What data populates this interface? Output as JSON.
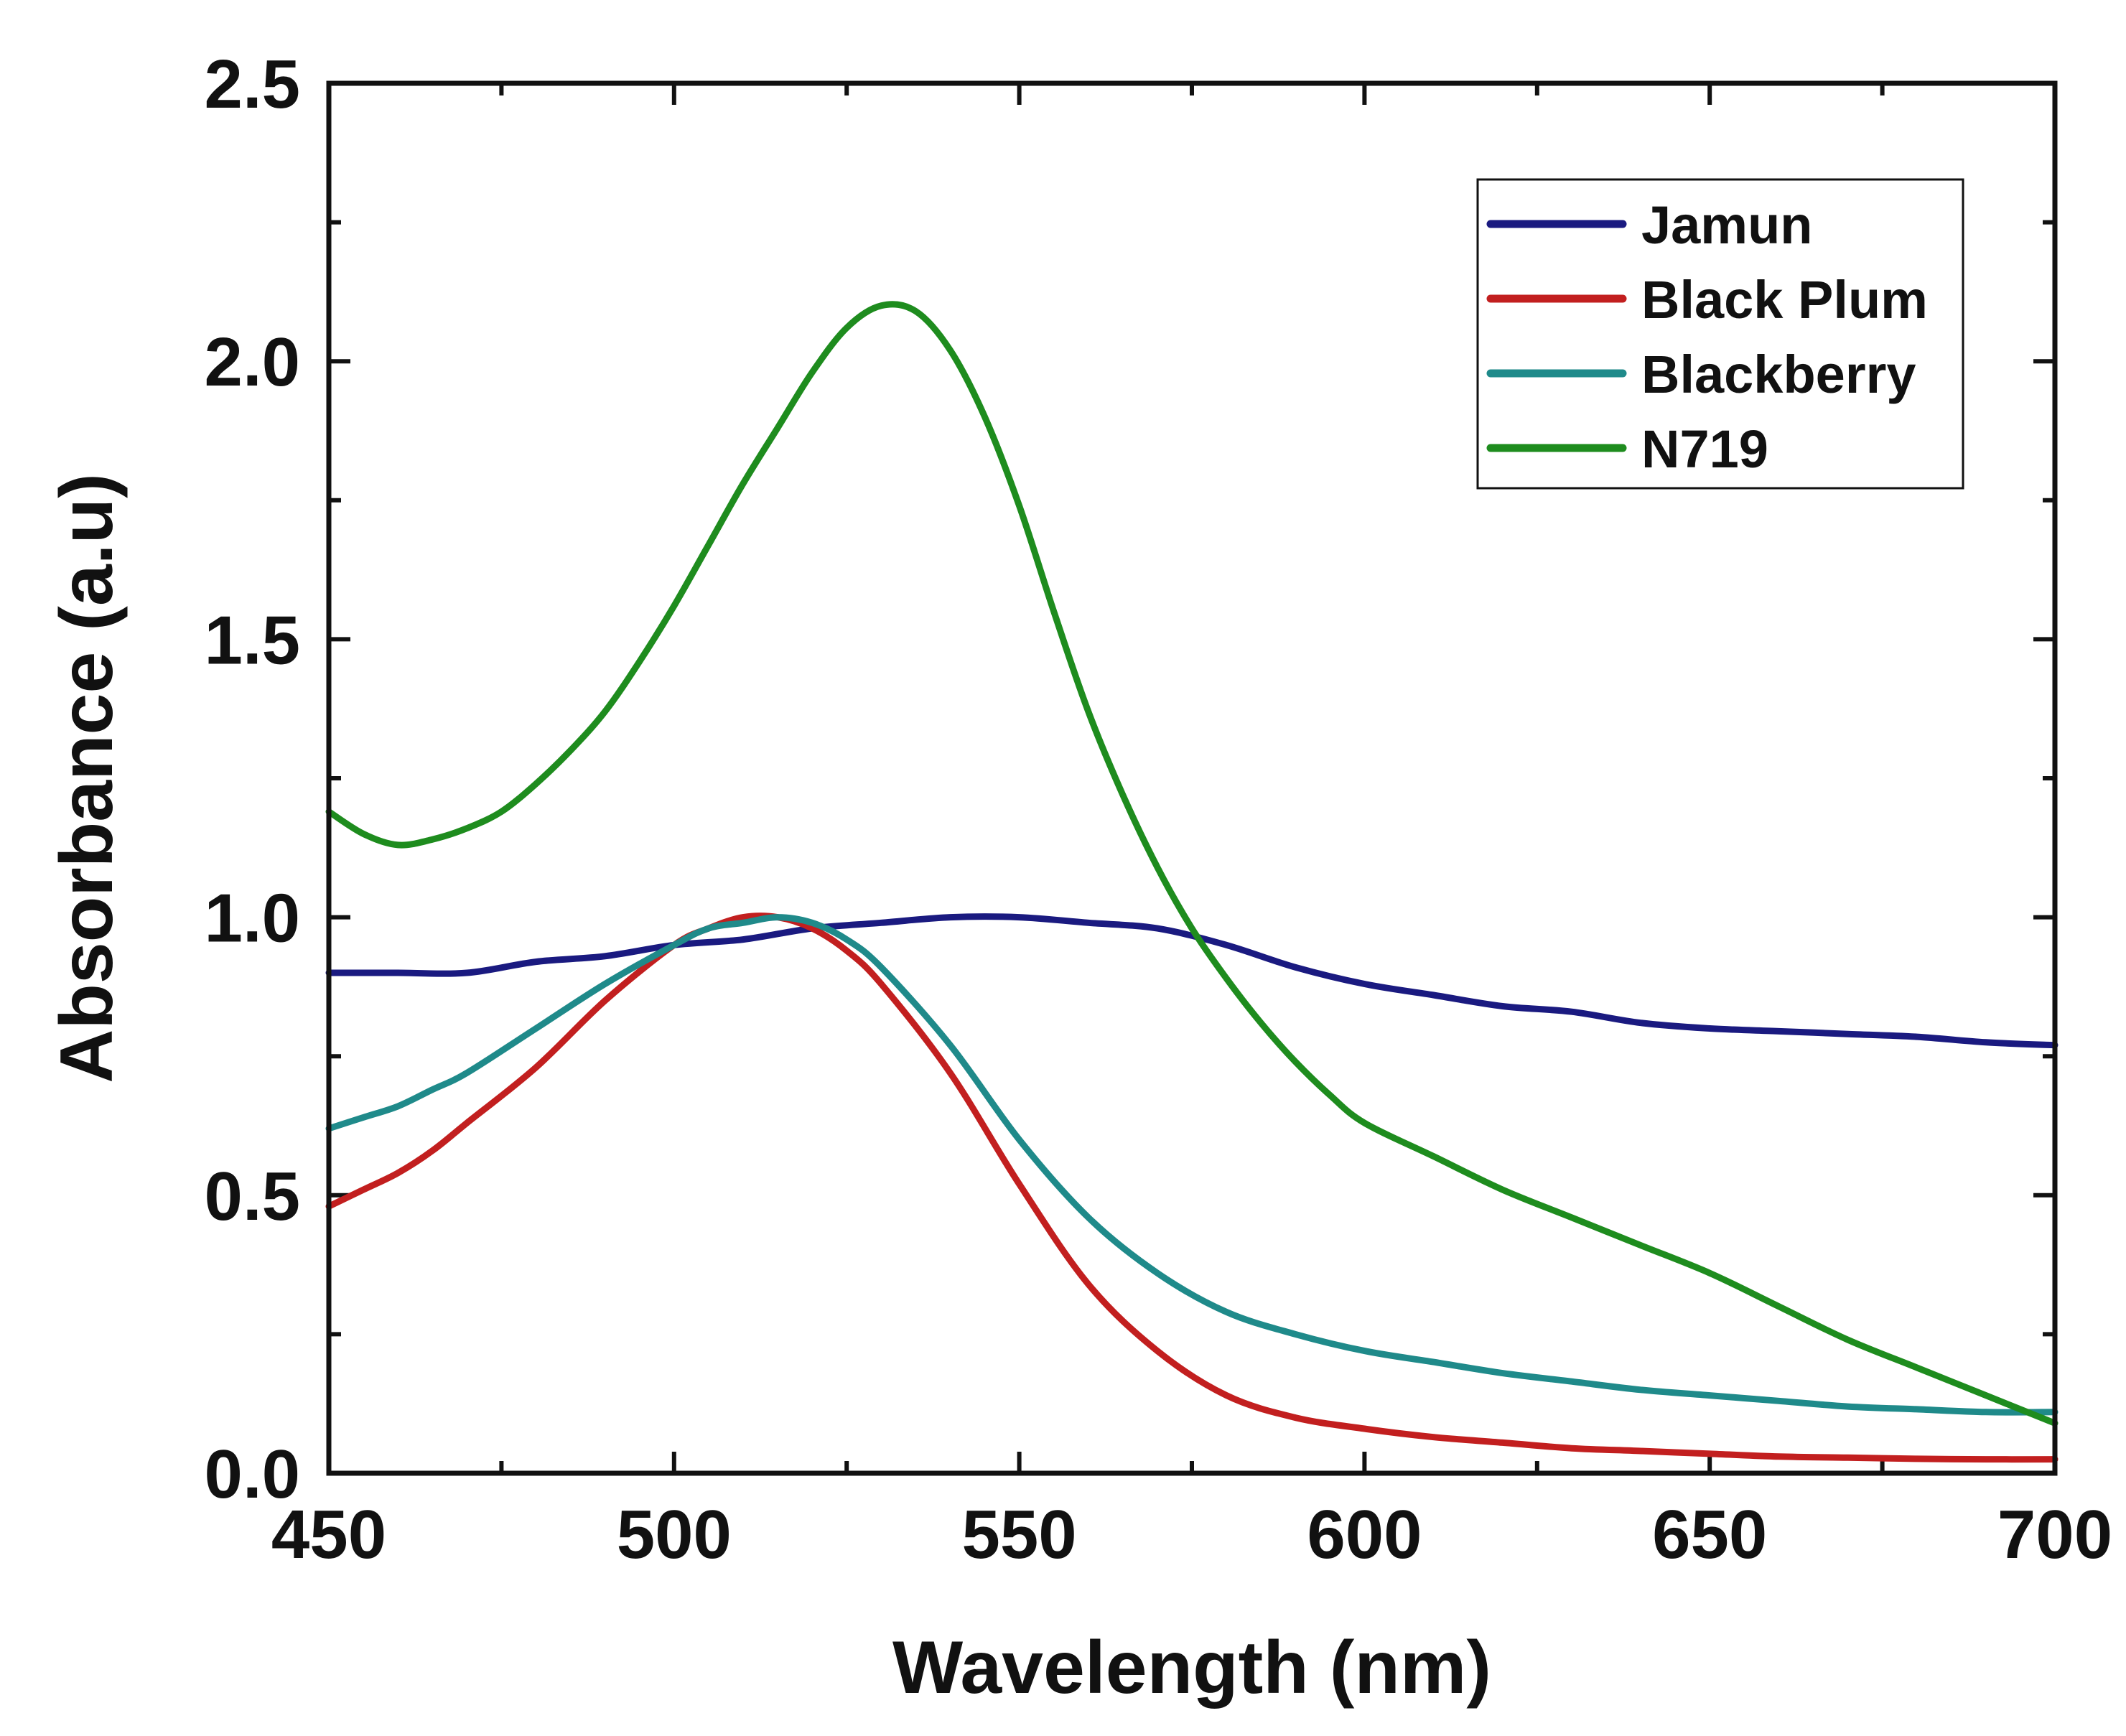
{
  "chart_data": {
    "type": "line",
    "title": "",
    "xlabel": "Wavelength (nm)",
    "ylabel": "Absorbance (a.u)",
    "xlim": [
      450,
      700
    ],
    "ylim": [
      0,
      2.5
    ],
    "xticks": [
      450,
      500,
      550,
      600,
      650,
      700
    ],
    "yticks": [
      0.0,
      0.5,
      1.0,
      1.5,
      2.0,
      2.5
    ],
    "xtick_labels": [
      "450",
      "500",
      "550",
      "600",
      "650",
      "700"
    ],
    "ytick_labels": [
      "0.0",
      "0.5",
      "1.0",
      "1.5",
      "2.0",
      "2.5"
    ],
    "grid": false,
    "legend_position": "top-right",
    "series": [
      {
        "name": "Jamun",
        "color": "#1a1a80",
        "x": [
          450,
          460,
          470,
          480,
          490,
          500,
          510,
          520,
          530,
          540,
          550,
          560,
          570,
          580,
          590,
          600,
          610,
          620,
          630,
          640,
          650,
          660,
          670,
          680,
          690,
          700
        ],
        "y": [
          0.9,
          0.9,
          0.9,
          0.92,
          0.93,
          0.95,
          0.96,
          0.98,
          0.99,
          1.0,
          1.0,
          0.99,
          0.98,
          0.95,
          0.91,
          0.88,
          0.86,
          0.84,
          0.83,
          0.81,
          0.8,
          0.795,
          0.79,
          0.785,
          0.775,
          0.77
        ]
      },
      {
        "name": "Black Plum",
        "color": "#c21f1f",
        "x": [
          450,
          455,
          460,
          465,
          470,
          480,
          490,
          500,
          505,
          510,
          515,
          520,
          525,
          530,
          540,
          550,
          560,
          570,
          580,
          590,
          600,
          610,
          620,
          630,
          640,
          650,
          660,
          670,
          680,
          690,
          700
        ],
        "y": [
          0.48,
          0.51,
          0.54,
          0.58,
          0.63,
          0.73,
          0.85,
          0.95,
          0.98,
          1.0,
          1.0,
          0.98,
          0.94,
          0.88,
          0.72,
          0.52,
          0.34,
          0.22,
          0.14,
          0.1,
          0.08,
          0.065,
          0.055,
          0.045,
          0.04,
          0.035,
          0.03,
          0.028,
          0.026,
          0.025,
          0.025
        ]
      },
      {
        "name": "Blackberry",
        "color": "#1f8a8a",
        "x": [
          450,
          455,
          460,
          465,
          470,
          480,
          490,
          500,
          505,
          510,
          515,
          520,
          525,
          530,
          540,
          550,
          560,
          570,
          580,
          590,
          600,
          610,
          620,
          630,
          640,
          650,
          660,
          670,
          680,
          690,
          700
        ],
        "y": [
          0.62,
          0.64,
          0.66,
          0.69,
          0.72,
          0.8,
          0.88,
          0.95,
          0.98,
          0.99,
          1.0,
          0.99,
          0.96,
          0.91,
          0.77,
          0.6,
          0.46,
          0.36,
          0.29,
          0.25,
          0.22,
          0.2,
          0.18,
          0.165,
          0.15,
          0.14,
          0.13,
          0.12,
          0.115,
          0.11,
          0.11
        ]
      },
      {
        "name": "N719",
        "color": "#1e8c1e",
        "x": [
          450,
          455,
          460,
          465,
          470,
          475,
          480,
          485,
          490,
          495,
          500,
          505,
          510,
          515,
          520,
          525,
          530,
          535,
          540,
          545,
          550,
          555,
          560,
          565,
          570,
          575,
          580,
          585,
          590,
          595,
          600,
          610,
          620,
          630,
          640,
          650,
          660,
          670,
          680,
          690,
          700
        ],
        "y": [
          1.19,
          1.15,
          1.13,
          1.14,
          1.16,
          1.19,
          1.24,
          1.3,
          1.37,
          1.46,
          1.56,
          1.67,
          1.78,
          1.88,
          1.98,
          2.06,
          2.1,
          2.09,
          2.02,
          1.9,
          1.74,
          1.55,
          1.37,
          1.22,
          1.09,
          0.98,
          0.89,
          0.81,
          0.74,
          0.68,
          0.63,
          0.57,
          0.51,
          0.46,
          0.41,
          0.36,
          0.3,
          0.24,
          0.19,
          0.14,
          0.09
        ]
      }
    ]
  }
}
